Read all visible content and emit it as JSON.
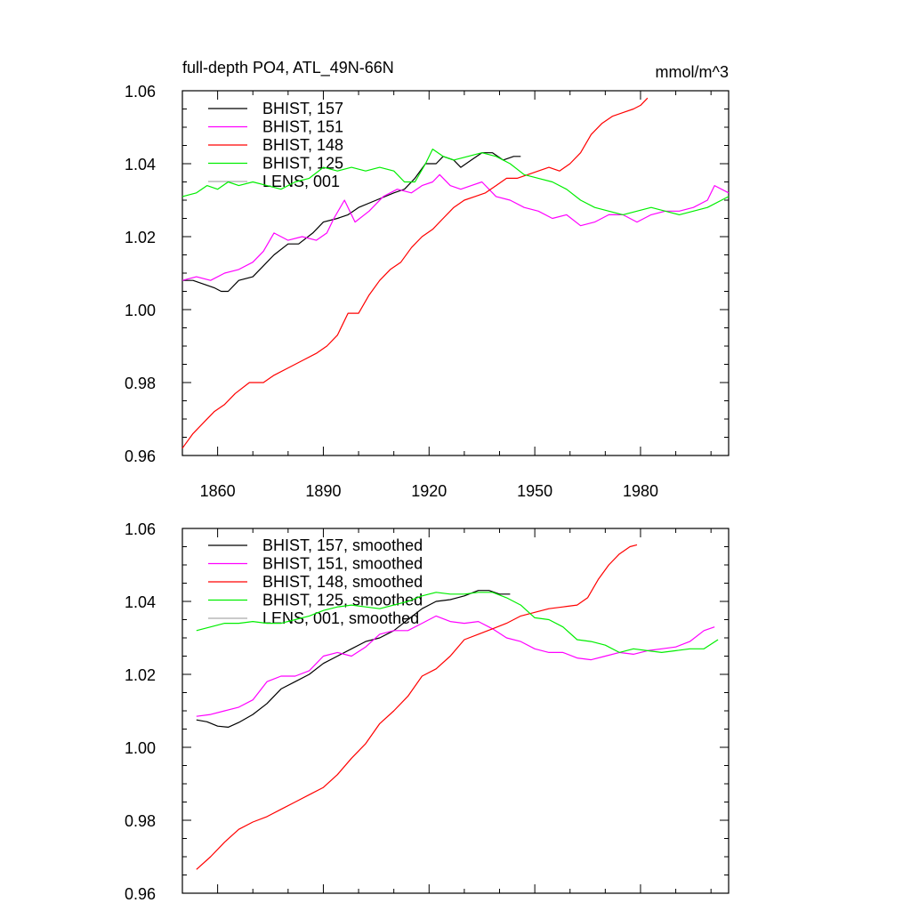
{
  "title": "full-depth PO4, ATL_49N-66N",
  "units": "mmol/m^3",
  "colors": {
    "BHIST_157": "#000000",
    "BHIST_151": "#ff00ff",
    "BHIST_148": "#ff0000",
    "BHIST_125": "#00ee00",
    "LENS_001": "#aaaaaa"
  },
  "chart_data": [
    {
      "type": "line",
      "panel": "top",
      "xlim": [
        1850,
        2005
      ],
      "ylim": [
        0.96,
        1.06
      ],
      "x_ticks": [
        1860,
        1890,
        1920,
        1950,
        1980
      ],
      "x_tick_labels": [
        "1860",
        "1890",
        "1920",
        "1950",
        "1980"
      ],
      "y_ticks": [
        0.96,
        0.98,
        1.0,
        1.02,
        1.04,
        1.06
      ],
      "y_tick_labels": [
        "0.96",
        "0.98",
        "1.00",
        "1.02",
        "1.04",
        "1.06"
      ],
      "legend_position": "top-left",
      "series": [
        {
          "name": "BHIST, 157",
          "color": "#000000",
          "x": [
            1850,
            1853,
            1856,
            1859,
            1861,
            1863,
            1866,
            1870,
            1873,
            1876,
            1880,
            1883,
            1887,
            1890,
            1894,
            1897,
            1900,
            1905,
            1910,
            1913,
            1916,
            1919,
            1922,
            1924,
            1927,
            1929,
            1932,
            1935,
            1938,
            1941,
            1944,
            1946
          ],
          "y": [
            1.008,
            1.008,
            1.007,
            1.006,
            1.005,
            1.005,
            1.008,
            1.009,
            1.012,
            1.015,
            1.018,
            1.018,
            1.021,
            1.024,
            1.025,
            1.026,
            1.028,
            1.03,
            1.032,
            1.033,
            1.036,
            1.04,
            1.04,
            1.042,
            1.041,
            1.039,
            1.041,
            1.043,
            1.043,
            1.041,
            1.042,
            1.042
          ]
        },
        {
          "name": "BHIST, 151",
          "color": "#ff00ff",
          "x": [
            1850,
            1854,
            1858,
            1862,
            1866,
            1870,
            1873,
            1876,
            1880,
            1884,
            1888,
            1891,
            1893,
            1896,
            1899,
            1903,
            1907,
            1911,
            1915,
            1918,
            1921,
            1923,
            1926,
            1929,
            1932,
            1935,
            1939,
            1943,
            1947,
            1951,
            1955,
            1959,
            1963,
            1967,
            1971,
            1975,
            1979,
            1983,
            1987,
            1991,
            1995,
            1999,
            2001,
            2005
          ],
          "y": [
            1.008,
            1.009,
            1.008,
            1.01,
            1.011,
            1.013,
            1.016,
            1.021,
            1.019,
            1.02,
            1.019,
            1.021,
            1.025,
            1.03,
            1.024,
            1.027,
            1.031,
            1.033,
            1.032,
            1.034,
            1.035,
            1.037,
            1.034,
            1.033,
            1.034,
            1.035,
            1.031,
            1.03,
            1.028,
            1.027,
            1.025,
            1.026,
            1.023,
            1.024,
            1.026,
            1.026,
            1.024,
            1.026,
            1.027,
            1.027,
            1.028,
            1.03,
            1.034,
            1.032
          ]
        },
        {
          "name": "BHIST, 148",
          "color": "#ff0000",
          "x": [
            1850,
            1853,
            1856,
            1859,
            1862,
            1865,
            1869,
            1873,
            1876,
            1880,
            1884,
            1888,
            1891,
            1894,
            1897,
            1900,
            1903,
            1906,
            1909,
            1912,
            1915,
            1918,
            1921,
            1924,
            1927,
            1930,
            1933,
            1936,
            1939,
            1942,
            1945,
            1948,
            1951,
            1954,
            1957,
            1960,
            1963,
            1966,
            1969,
            1972,
            1975,
            1978,
            1980,
            1982
          ],
          "y": [
            0.962,
            0.966,
            0.969,
            0.972,
            0.974,
            0.977,
            0.98,
            0.98,
            0.982,
            0.984,
            0.986,
            0.988,
            0.99,
            0.993,
            0.999,
            0.999,
            1.004,
            1.008,
            1.011,
            1.013,
            1.017,
            1.02,
            1.022,
            1.025,
            1.028,
            1.03,
            1.031,
            1.032,
            1.034,
            1.036,
            1.036,
            1.037,
            1.038,
            1.039,
            1.038,
            1.04,
            1.043,
            1.048,
            1.051,
            1.053,
            1.054,
            1.055,
            1.056,
            1.058
          ]
        },
        {
          "name": "BHIST, 125",
          "color": "#00ee00",
          "x": [
            1850,
            1854,
            1857,
            1860,
            1863,
            1866,
            1870,
            1874,
            1878,
            1882,
            1886,
            1890,
            1894,
            1898,
            1902,
            1906,
            1910,
            1913,
            1916,
            1919,
            1921,
            1924,
            1927,
            1931,
            1935,
            1939,
            1943,
            1947,
            1951,
            1955,
            1959,
            1963,
            1967,
            1971,
            1975,
            1979,
            1983,
            1987,
            1991,
            1995,
            1999,
            2005
          ],
          "y": [
            1.031,
            1.032,
            1.034,
            1.033,
            1.035,
            1.034,
            1.035,
            1.034,
            1.033,
            1.035,
            1.036,
            1.039,
            1.038,
            1.039,
            1.038,
            1.039,
            1.038,
            1.035,
            1.035,
            1.04,
            1.044,
            1.042,
            1.041,
            1.042,
            1.043,
            1.042,
            1.04,
            1.037,
            1.036,
            1.035,
            1.033,
            1.03,
            1.028,
            1.027,
            1.026,
            1.027,
            1.028,
            1.027,
            1.026,
            1.027,
            1.028,
            1.031
          ]
        }
      ]
    },
    {
      "type": "line",
      "panel": "bottom",
      "xlim": [
        1850,
        2005
      ],
      "ylim": [
        0.96,
        1.06
      ],
      "x_ticks": [
        1860,
        1890,
        1920,
        1950,
        1980
      ],
      "y_ticks": [
        0.96,
        0.98,
        1.0,
        1.02,
        1.04,
        1.06
      ],
      "y_tick_labels": [
        "0.96",
        "0.98",
        "1.00",
        "1.02",
        "1.04",
        "1.06"
      ],
      "legend_position": "top-left",
      "series": [
        {
          "name": "BHIST, 157, smoothed",
          "color": "#000000",
          "x": [
            1854,
            1857,
            1860,
            1863,
            1866,
            1870,
            1874,
            1878,
            1882,
            1886,
            1890,
            1894,
            1898,
            1902,
            1906,
            1910,
            1914,
            1918,
            1922,
            1926,
            1930,
            1934,
            1937,
            1940,
            1943
          ],
          "y": [
            1.0075,
            1.007,
            1.0058,
            1.0055,
            1.0068,
            1.009,
            1.012,
            1.016,
            1.018,
            1.02,
            1.023,
            1.025,
            1.027,
            1.029,
            1.03,
            1.032,
            1.035,
            1.038,
            1.04,
            1.0405,
            1.0415,
            1.043,
            1.043,
            1.042,
            1.042
          ]
        },
        {
          "name": "BHIST, 151, smoothed",
          "color": "#ff00ff",
          "x": [
            1854,
            1858,
            1862,
            1866,
            1870,
            1874,
            1878,
            1882,
            1886,
            1890,
            1894,
            1898,
            1902,
            1906,
            1910,
            1914,
            1918,
            1922,
            1926,
            1930,
            1934,
            1938,
            1942,
            1946,
            1950,
            1954,
            1958,
            1962,
            1966,
            1970,
            1974,
            1978,
            1982,
            1986,
            1990,
            1994,
            1998,
            2001
          ],
          "y": [
            1.0085,
            1.009,
            1.01,
            1.011,
            1.013,
            1.018,
            1.0195,
            1.0195,
            1.021,
            1.025,
            1.026,
            1.025,
            1.0275,
            1.031,
            1.032,
            1.032,
            1.034,
            1.036,
            1.0345,
            1.034,
            1.0345,
            1.0325,
            1.03,
            1.029,
            1.027,
            1.026,
            1.026,
            1.0245,
            1.024,
            1.025,
            1.026,
            1.0255,
            1.0265,
            1.027,
            1.0275,
            1.029,
            1.032,
            1.033
          ]
        },
        {
          "name": "BHIST, 148, smoothed",
          "color": "#ff0000",
          "x": [
            1854,
            1858,
            1862,
            1866,
            1870,
            1874,
            1878,
            1882,
            1886,
            1890,
            1894,
            1898,
            1902,
            1906,
            1910,
            1914,
            1918,
            1922,
            1926,
            1930,
            1934,
            1938,
            1942,
            1946,
            1950,
            1954,
            1958,
            1962,
            1965,
            1968,
            1971,
            1974,
            1977,
            1979
          ],
          "y": [
            0.9665,
            0.97,
            0.974,
            0.9775,
            0.9795,
            0.981,
            0.983,
            0.985,
            0.987,
            0.989,
            0.9925,
            0.997,
            1.001,
            1.0065,
            1.01,
            1.014,
            1.0195,
            1.0215,
            1.025,
            1.0295,
            1.031,
            1.0325,
            1.034,
            1.036,
            1.037,
            1.038,
            1.0385,
            1.039,
            1.041,
            1.046,
            1.05,
            1.053,
            1.055,
            1.0555
          ]
        },
        {
          "name": "BHIST, 125, smoothed",
          "color": "#00ee00",
          "x": [
            1854,
            1858,
            1862,
            1866,
            1870,
            1874,
            1878,
            1882,
            1886,
            1890,
            1894,
            1898,
            1902,
            1906,
            1910,
            1914,
            1918,
            1922,
            1926,
            1930,
            1934,
            1938,
            1942,
            1946,
            1950,
            1954,
            1958,
            1962,
            1966,
            1970,
            1974,
            1978,
            1982,
            1986,
            1990,
            1994,
            1998,
            2002
          ],
          "y": [
            1.032,
            1.033,
            1.034,
            1.034,
            1.0345,
            1.034,
            1.034,
            1.035,
            1.036,
            1.0375,
            1.0385,
            1.039,
            1.0385,
            1.038,
            1.039,
            1.04,
            1.0415,
            1.0425,
            1.042,
            1.042,
            1.0425,
            1.0425,
            1.041,
            1.039,
            1.0355,
            1.035,
            1.033,
            1.0295,
            1.029,
            1.028,
            1.026,
            1.027,
            1.0265,
            1.026,
            1.0265,
            1.027,
            1.027,
            1.0295
          ]
        }
      ]
    }
  ],
  "legends": {
    "top": [
      "BHIST, 157",
      "BHIST, 151",
      "BHIST, 148",
      "BHIST, 125",
      "LENS, 001"
    ],
    "bottom": [
      "BHIST, 157, smoothed",
      "BHIST, 151, smoothed",
      "BHIST, 148, smoothed",
      "BHIST, 125, smoothed",
      "LENS, 001, smoothed"
    ]
  }
}
